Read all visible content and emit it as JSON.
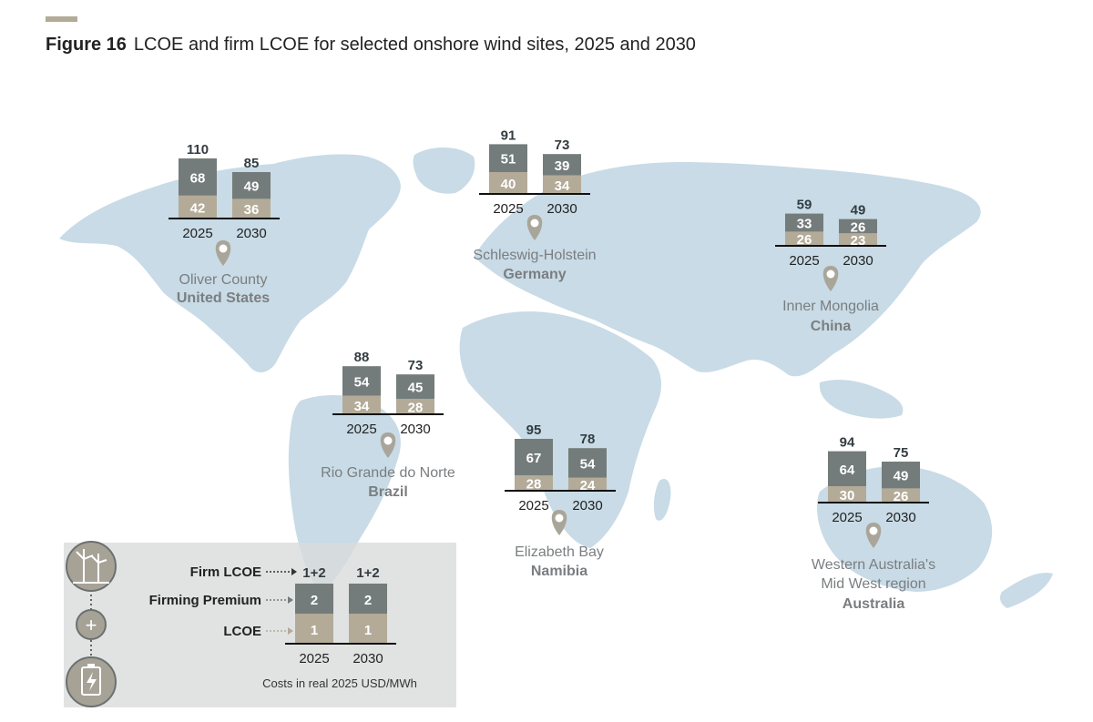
{
  "figure": {
    "number": "Figure 16",
    "title": "LCOE and firm LCOE for selected onshore wind sites, 2025 and 2030"
  },
  "chart_data": {
    "type": "bar",
    "stacked": true,
    "categories": [
      "2025",
      "2030"
    ],
    "colors": {
      "lcoe": "#b3ab98",
      "firming": "#737c7a",
      "map": "#c8dbe6",
      "pin": "#aaa59a"
    },
    "sites": [
      {
        "location": "Oliver County",
        "country": "United States",
        "totals": [
          110,
          85
        ],
        "lcoe": [
          42,
          36
        ],
        "firming": [
          68,
          49
        ]
      },
      {
        "location": "Schleswig-Holstein",
        "country": "Germany",
        "totals": [
          91,
          73
        ],
        "lcoe": [
          40,
          34
        ],
        "firming": [
          51,
          39
        ]
      },
      {
        "location": "Inner Mongolia",
        "country": "China",
        "totals": [
          59,
          49
        ],
        "lcoe": [
          26,
          23
        ],
        "firming": [
          33,
          26
        ]
      },
      {
        "location": "Rio Grande do Norte",
        "country": "Brazil",
        "totals": [
          88,
          73
        ],
        "lcoe": [
          34,
          28
        ],
        "firming": [
          54,
          45
        ]
      },
      {
        "location": "Elizabeth Bay",
        "country": "Namibia",
        "totals": [
          95,
          78
        ],
        "lcoe": [
          28,
          24
        ],
        "firming": [
          67,
          54
        ]
      },
      {
        "location": "Western Australia's",
        "location_line2": "Mid West region",
        "country": "Australia",
        "totals": [
          94,
          75
        ],
        "lcoe": [
          30,
          26
        ],
        "firming": [
          64,
          49
        ]
      }
    ]
  },
  "legend": {
    "firm_lcoe": "Firm LCOE",
    "firming_premium": "Firming Premium",
    "lcoe": "LCOE",
    "total_label": "1+2",
    "firming_value": "2",
    "lcoe_value": "1",
    "plus_symbol": "+",
    "note": "Costs in real 2025 USD/MWh"
  }
}
